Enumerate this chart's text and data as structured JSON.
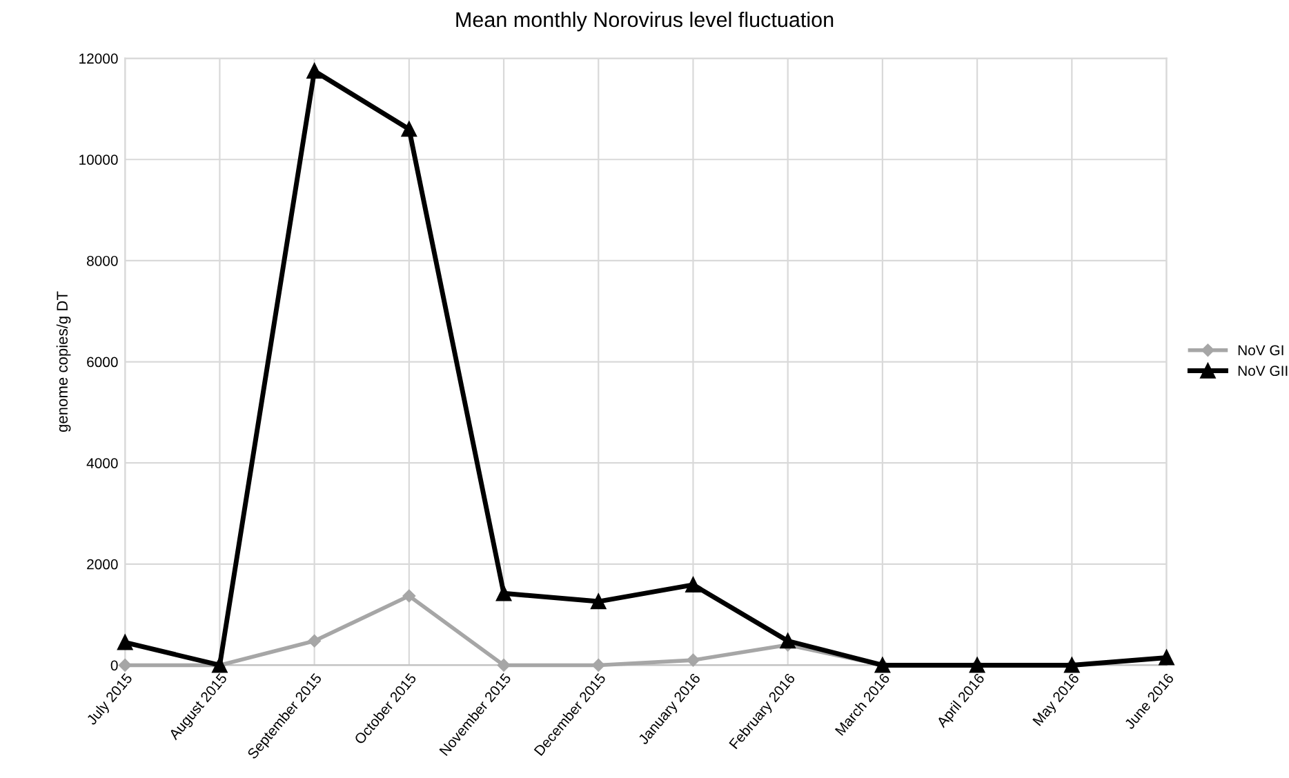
{
  "chart_data": {
    "type": "line",
    "title": "Mean monthly Norovirus level fluctuation",
    "ylabel": "genome copies/g DT",
    "categories": [
      "July 2015",
      "August 2015",
      "September 2015",
      "October 2015",
      "November 2015",
      "December 2015",
      "January 2016",
      "February 2016",
      "March 2016",
      "April 2016",
      "May 2016",
      "June 2016"
    ],
    "series": [
      {
        "name": "NoV GI",
        "color": "#a6a6a6",
        "marker": "diamond",
        "values": [
          0,
          0,
          480,
          1370,
          0,
          0,
          100,
          400,
          0,
          0,
          0,
          null
        ]
      },
      {
        "name": "NoV GII",
        "color": "#000000",
        "marker": "triangle",
        "values": [
          450,
          0,
          11750,
          10600,
          1420,
          1260,
          1590,
          480,
          0,
          0,
          0,
          150
        ]
      }
    ],
    "ylim": [
      0,
      12000
    ],
    "yticks": [
      0,
      2000,
      4000,
      6000,
      8000,
      10000,
      12000
    ],
    "grid": true,
    "legend": "right",
    "line_style": "solid"
  }
}
